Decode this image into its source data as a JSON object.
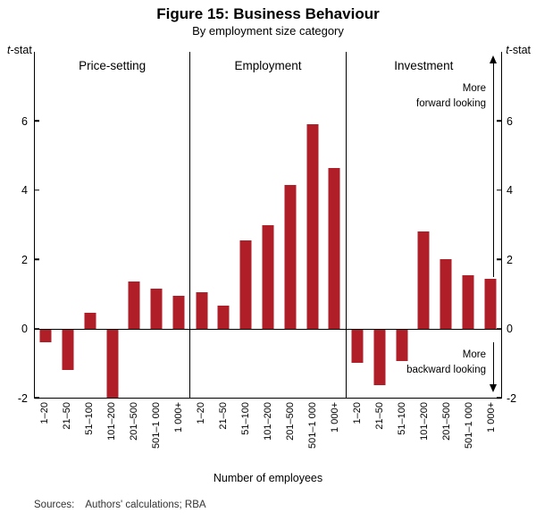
{
  "title": "Figure 15: Business Behaviour",
  "subtitle": "By employment size category",
  "axis_unit": {
    "italic": "t",
    "rest": "-stat"
  },
  "xlabel": "Number of employees",
  "sources": {
    "label": "Sources:",
    "text": "Authors' calculations; RBA"
  },
  "annotations": {
    "more_forward": "More\nforward looking",
    "more_backward": "More\nbackward looking"
  },
  "chart_data": {
    "type": "bar",
    "title": "Figure 15: Business Behaviour",
    "subtitle": "By employment size category",
    "ylabel": "t-stat",
    "xlabel": "Number of employees",
    "ylim": [
      -2,
      8
    ],
    "yticks": [
      -2,
      0,
      2,
      4,
      6
    ],
    "grid": false,
    "bar_color": "#b01e28",
    "categories": [
      "1–20",
      "21–50",
      "51–100",
      "101–200",
      "201–500",
      "501–1 000",
      "1 000+"
    ],
    "panels": [
      {
        "label": "Price-setting",
        "values": [
          -0.4,
          -1.2,
          0.45,
          -2.0,
          1.35,
          1.15,
          0.95
        ]
      },
      {
        "label": "Employment",
        "values": [
          1.05,
          0.65,
          2.55,
          3.0,
          4.15,
          5.9,
          4.65
        ]
      },
      {
        "label": "Investment",
        "values": [
          -1.0,
          -1.65,
          -0.95,
          2.8,
          2.0,
          1.55,
          1.45
        ]
      }
    ]
  }
}
